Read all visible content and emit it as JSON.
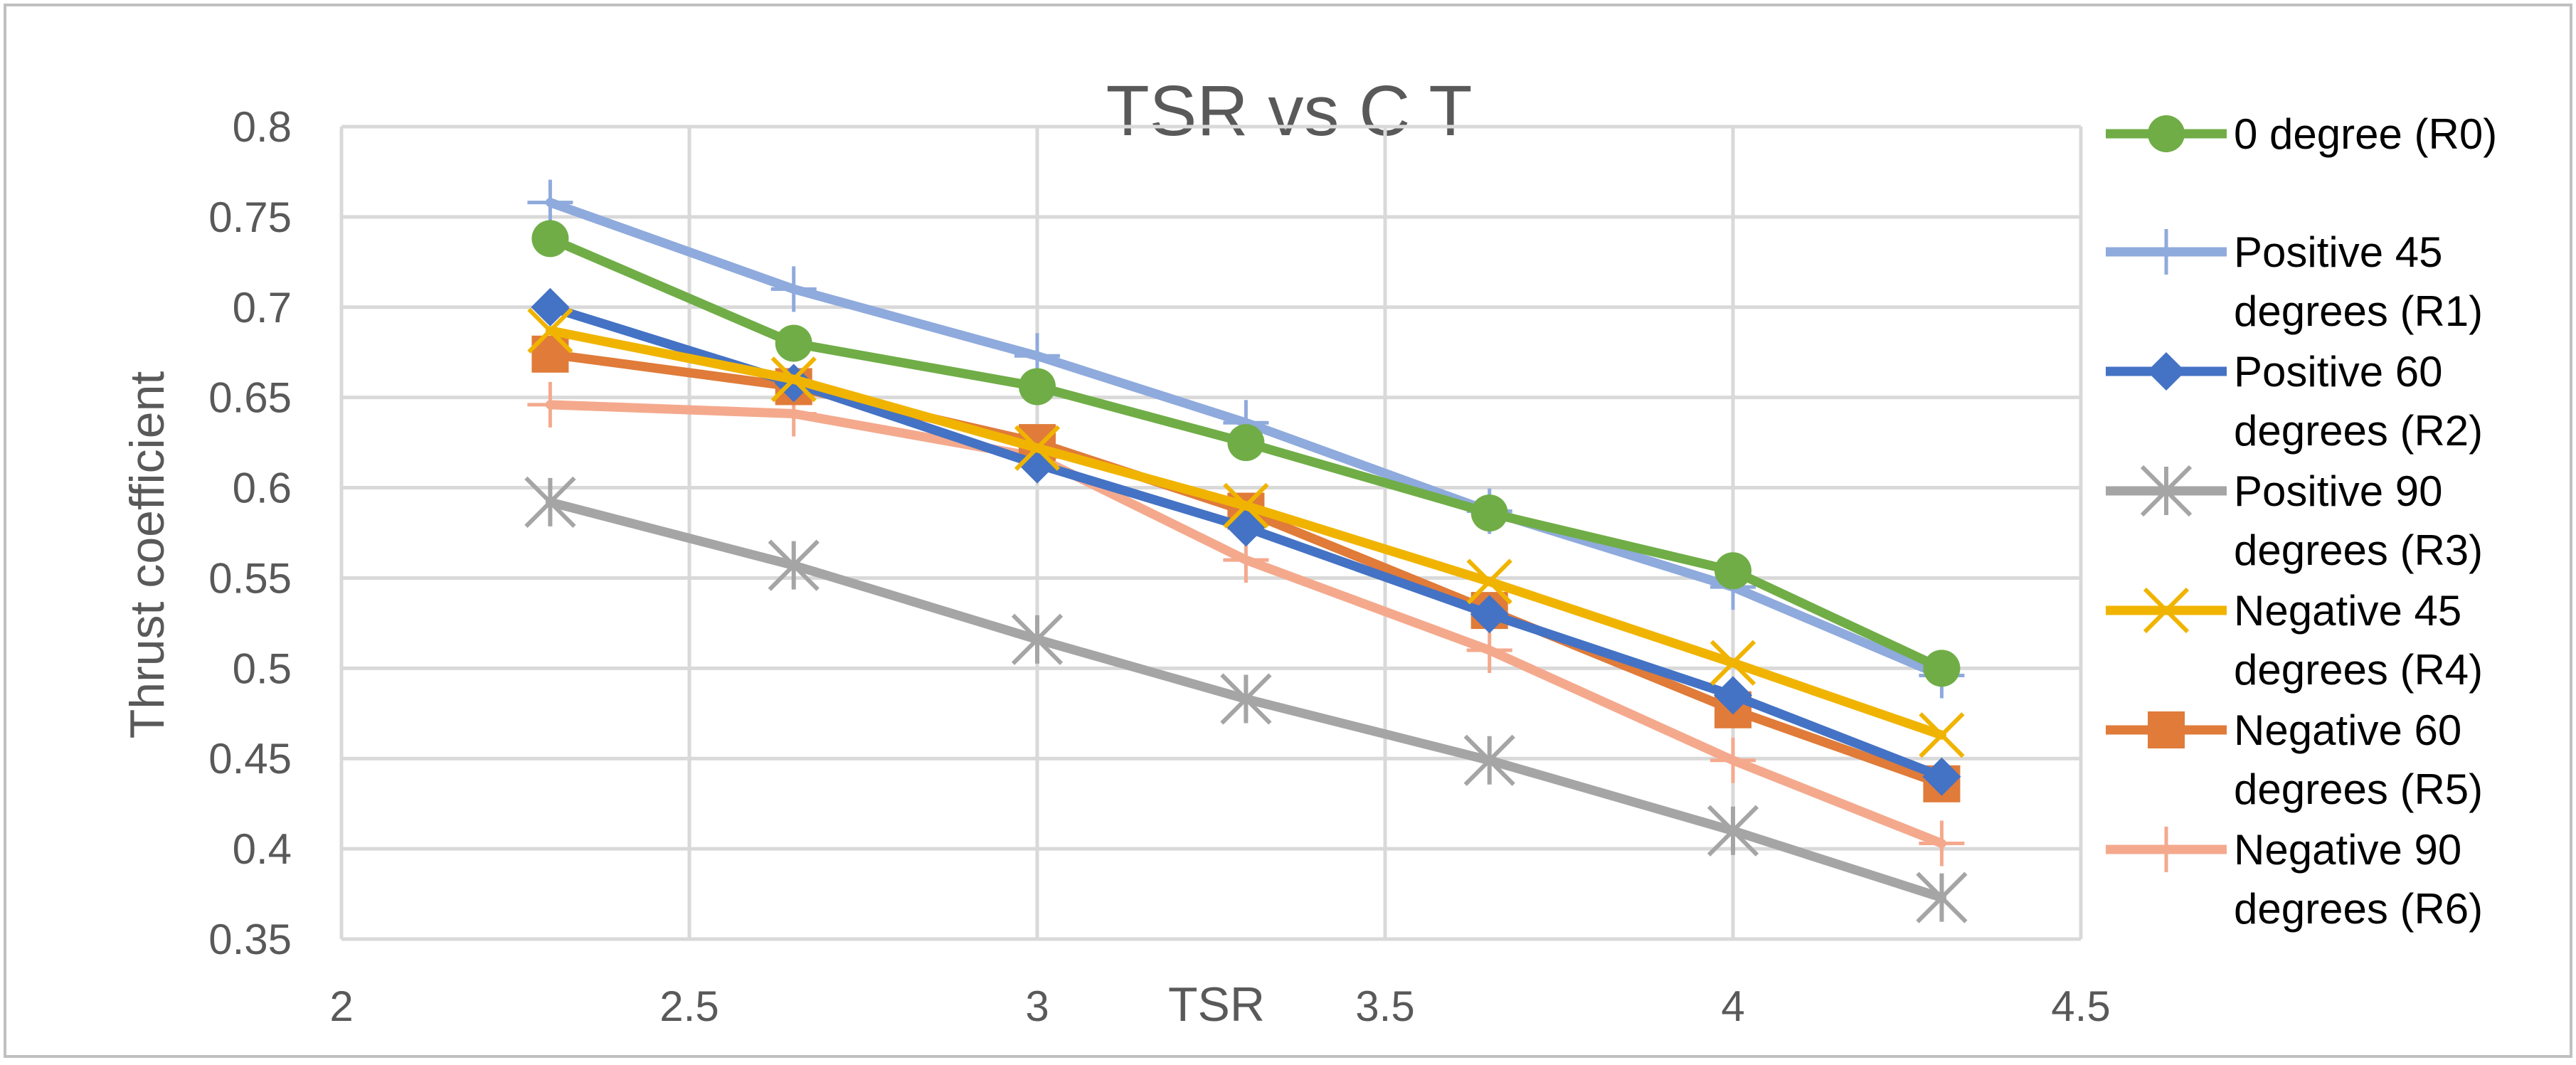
{
  "chart_data": {
    "type": "line",
    "title": "TSR vs C T",
    "xlabel": "TSR",
    "ylabel": "Thrust coefficient",
    "xlim": [
      2,
      4.5
    ],
    "ylim": [
      0.35,
      0.8
    ],
    "xticks": [
      2,
      2.5,
      3,
      3.5,
      4,
      4.5
    ],
    "xtick_labels": [
      "2",
      "2.5",
      "3",
      "3.5",
      "4",
      "4.5"
    ],
    "yticks": [
      0.35,
      0.4,
      0.45,
      0.5,
      0.55,
      0.6,
      0.65,
      0.7,
      0.75,
      0.8
    ],
    "ytick_labels": [
      "0.35",
      "0.4",
      "0.45",
      "0.5",
      "0.55",
      "0.6",
      "0.65",
      "0.7",
      "0.75",
      "0.8"
    ],
    "grid": true,
    "legend_position": "right",
    "x": [
      2.3,
      2.65,
      3.0,
      3.3,
      3.65,
      4.0,
      4.3
    ],
    "series": [
      {
        "name": "0 degree (R0)",
        "legend_lines": [
          "0 degree (R0)"
        ],
        "color": "#70AD47",
        "marker": "circle",
        "values": [
          0.738,
          0.68,
          0.656,
          0.625,
          0.586,
          0.554,
          0.5
        ]
      },
      {
        "name": "Positive 45 degrees (R1)",
        "legend_lines": [
          "Positive 45",
          "degrees (R1)"
        ],
        "color": "#8FAADC",
        "marker": "plus",
        "values": [
          0.758,
          0.71,
          0.673,
          0.636,
          0.587,
          0.545,
          0.496
        ]
      },
      {
        "name": "Positive 60 degrees (R2)",
        "legend_lines": [
          "Positive 60",
          "degrees (R2)"
        ],
        "color": "#4472C4",
        "marker": "diamond",
        "values": [
          0.7,
          0.658,
          0.613,
          0.578,
          0.53,
          0.485,
          0.44
        ]
      },
      {
        "name": "Positive 90 degrees (R3)",
        "legend_lines": [
          "Positive 90",
          "degrees (R3)"
        ],
        "color": "#A5A5A5",
        "marker": "star",
        "values": [
          0.592,
          0.557,
          0.516,
          0.483,
          0.449,
          0.41,
          0.373
        ]
      },
      {
        "name": "Negative 45 degrees (R4)",
        "legend_lines": [
          "Negative 45",
          "degrees (R4)"
        ],
        "color": "#F0B400",
        "marker": "x",
        "values": [
          0.687,
          0.66,
          0.622,
          0.59,
          0.548,
          0.503,
          0.463
        ]
      },
      {
        "name": "Negative 60 degrees (R5)",
        "legend_lines": [
          "Negative 60",
          "degrees (R5)"
        ],
        "color": "#E07B39",
        "marker": "square",
        "values": [
          0.674,
          0.656,
          0.625,
          0.587,
          0.532,
          0.477,
          0.436
        ]
      },
      {
        "name": "Negative 90 degrees (R6)",
        "legend_lines": [
          "Negative 90",
          "degrees (R6)"
        ],
        "color": "#F4A98D",
        "marker": "plus",
        "values": [
          0.646,
          0.641,
          0.617,
          0.56,
          0.51,
          0.449,
          0.403
        ]
      }
    ]
  }
}
